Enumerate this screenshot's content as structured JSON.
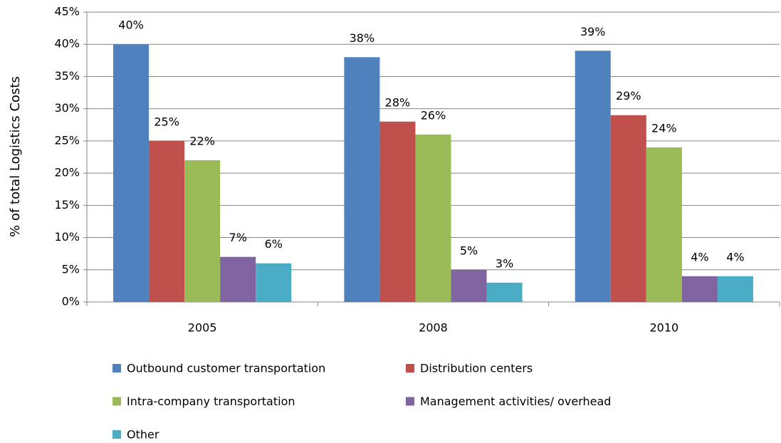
{
  "chart_data": {
    "type": "bar",
    "y_label": "% of total Logistics Costs",
    "categories": [
      "2005",
      "2008",
      "2010"
    ],
    "series": [
      {
        "name": "Outbound customer transportation",
        "color": "#4f81bd",
        "values": [
          40,
          38,
          39
        ],
        "value_labels": [
          "40%",
          "38%",
          "39%"
        ]
      },
      {
        "name": "Distribution centers",
        "color": "#c0504d",
        "values": [
          25,
          28,
          29
        ],
        "value_labels": [
          "25%",
          "28%",
          "29%"
        ]
      },
      {
        "name": "Intra-company transportation",
        "color": "#9bbb59",
        "values": [
          22,
          26,
          24
        ],
        "value_labels": [
          "22%",
          "26%",
          "24%"
        ]
      },
      {
        "name": "Management activities/ overhead",
        "color": "#8064a2",
        "values": [
          7,
          5,
          4
        ],
        "value_labels": [
          "7%",
          "5%",
          "4%"
        ]
      },
      {
        "name": "Other",
        "color": "#4bacc6",
        "values": [
          6,
          3,
          4
        ],
        "value_labels": [
          "6%",
          "3%",
          "4%"
        ]
      }
    ],
    "ylim": [
      0,
      45
    ],
    "yticks": [
      {
        "value": 0,
        "label": "0%"
      },
      {
        "value": 5,
        "label": "5%"
      },
      {
        "value": 10,
        "label": "10%"
      },
      {
        "value": 15,
        "label": "15%"
      },
      {
        "value": 20,
        "label": "20%"
      },
      {
        "value": 25,
        "label": "25%"
      },
      {
        "value": 30,
        "label": "30%"
      },
      {
        "value": 35,
        "label": "35%"
      },
      {
        "value": 40,
        "label": "40%"
      },
      {
        "value": 45,
        "label": "45%"
      }
    ],
    "grid": true,
    "legend": "bottom"
  }
}
